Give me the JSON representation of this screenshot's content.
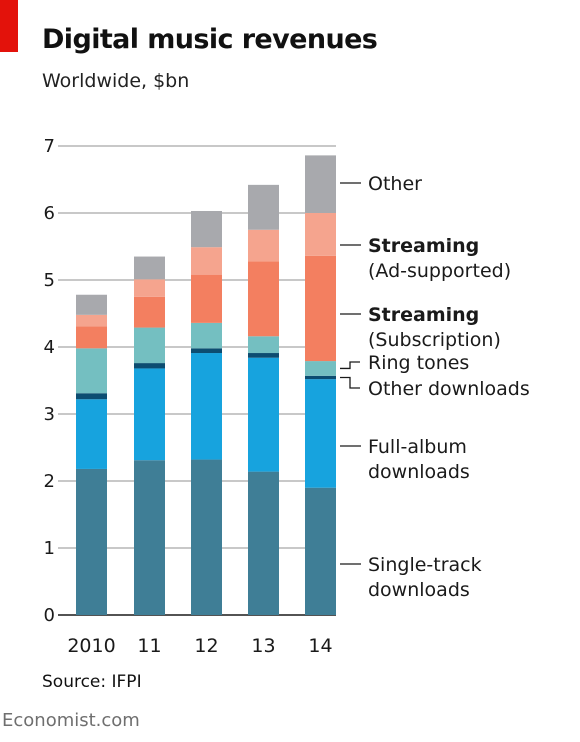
{
  "header": {
    "title": "Digital music revenues",
    "subtitle": "Worldwide, $bn"
  },
  "footer": {
    "source": "Source: IFPI",
    "brand": "Economist.com"
  },
  "colors": {
    "accent": "#e3120b",
    "gridline": "#c8c8c8",
    "single_track": "#3f7e96",
    "full_album": "#17a3de",
    "other_downloads": "#0c4d71",
    "ring_tones": "#74bfc1",
    "subscription": "#f37f60",
    "ad_supported": "#f5a48e",
    "other": "#a8a9ad"
  },
  "chart_data": {
    "type": "bar",
    "stacked": true,
    "categories": [
      "2010",
      "11",
      "12",
      "13",
      "14"
    ],
    "ylim": [
      0,
      7
    ],
    "yticks": [
      "0",
      "1",
      "2",
      "3",
      "4",
      "5",
      "6",
      "7"
    ],
    "grid": true,
    "legend_position": "right, labels aligned with 2014 bar segments",
    "series": [
      {
        "name": "Single-track downloads",
        "values": [
          2.18,
          2.31,
          2.32,
          2.14,
          1.9
        ],
        "color": "#3f7e96"
      },
      {
        "name": "Full-album downloads",
        "values": [
          1.04,
          1.37,
          1.59,
          1.7,
          1.62
        ],
        "color": "#17a3de"
      },
      {
        "name": "Other downloads",
        "values": [
          0.09,
          0.08,
          0.07,
          0.07,
          0.05
        ],
        "color": "#0c4d71"
      },
      {
        "name": "Ring tones",
        "values": [
          0.67,
          0.53,
          0.38,
          0.25,
          0.22
        ],
        "color": "#74bfc1"
      },
      {
        "name": "Streaming (Subscription)",
        "values": [
          0.33,
          0.46,
          0.72,
          1.12,
          1.57
        ],
        "color": "#f37f60"
      },
      {
        "name": "Streaming (Ad-supported)",
        "values": [
          0.17,
          0.26,
          0.41,
          0.47,
          0.64
        ],
        "color": "#f5a48e"
      },
      {
        "name": "Other",
        "values": [
          0.3,
          0.34,
          0.54,
          0.67,
          0.86
        ],
        "color": "#a8a9ad"
      }
    ],
    "legend": [
      {
        "series": 6,
        "lines": [
          "Other"
        ],
        "bold_first": false
      },
      {
        "series": 5,
        "lines": [
          "Streaming",
          "(Ad-supported)"
        ],
        "bold_first": true
      },
      {
        "series": 4,
        "lines": [
          "Streaming",
          "(Subscription)"
        ],
        "bold_first": true
      },
      {
        "series": 3,
        "lines": [
          "Ring tones"
        ],
        "bold_first": false
      },
      {
        "series": 2,
        "lines": [
          "Other downloads"
        ],
        "bold_first": false
      },
      {
        "series": 1,
        "lines": [
          "Full-album",
          "downloads"
        ],
        "bold_first": false
      },
      {
        "series": 0,
        "lines": [
          "Single-track",
          "downloads"
        ],
        "bold_first": false
      }
    ]
  }
}
